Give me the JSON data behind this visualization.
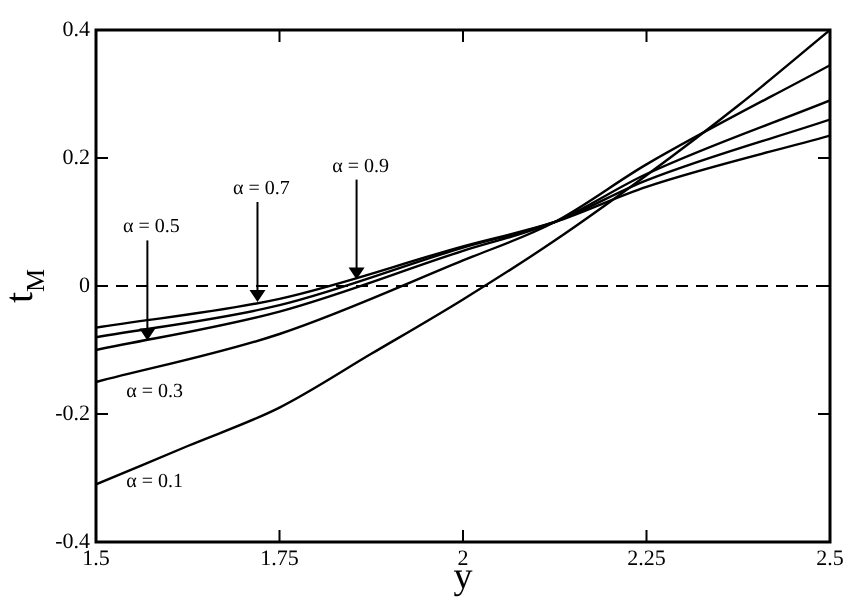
{
  "chart_data": {
    "type": "line",
    "xlabel": "y",
    "ylabel": "t$_{M}$",
    "xlim": [
      1.5,
      2.5
    ],
    "xticks": [
      1.5,
      1.75,
      2,
      2.25,
      2.5
    ],
    "ylim": [
      -0.4,
      0.4
    ],
    "yticks": [
      -0.4,
      -0.2,
      0,
      0.2,
      0.4
    ],
    "grid": false,
    "legend": false,
    "marker": "none",
    "line_style": "solid",
    "series": [
      {
        "color": "#000000",
        "x": [
          1.5,
          1.625,
          1.75,
          1.875,
          2,
          2.125,
          2.25,
          2.375,
          2.5
        ],
        "values": [
          -0.31,
          -0.25,
          -0.19,
          -0.106,
          -0.021,
          0.071,
          0.173,
          0.282,
          0.4
        ]
      },
      {
        "color": "#000000",
        "x": [
          1.5,
          1.75,
          2,
          2.125,
          2.25,
          2.5
        ],
        "values": [
          -0.15,
          -0.075,
          0.04,
          0.1,
          0.19,
          0.345
        ]
      },
      {
        "color": "#000000",
        "x": [
          1.5,
          1.75,
          2,
          2.125,
          2.25,
          2.5
        ],
        "values": [
          -0.1,
          -0.04,
          0.055,
          0.1,
          0.175,
          0.29
        ]
      },
      {
        "color": "#000000",
        "x": [
          1.5,
          1.75,
          2,
          2.125,
          2.25,
          2.5
        ],
        "values": [
          -0.08,
          -0.03,
          0.06,
          0.1,
          0.165,
          0.26
        ]
      },
      {
        "color": "#000000",
        "x": [
          1.5,
          1.75,
          2,
          2.125,
          2.25,
          2.5
        ],
        "values": [
          -0.065,
          -0.02,
          0.062,
          0.1,
          0.155,
          0.235
        ]
      }
    ],
    "ref_lines": [
      {
        "axis": "y",
        "value": 0,
        "color": "#000000",
        "line_style": "dashed"
      }
    ],
    "annotations": [
      {
        "text": "α = 0.5",
        "x": 1.57,
        "y": -0.085
      },
      {
        "text": "α = 0.7",
        "x": 1.72,
        "y": -0.025
      },
      {
        "text": "α = 0.9",
        "x": 1.855,
        "y": 0.01
      },
      {
        "text": "α = 0.3",
        "x": 1.58,
        "y": -0.13
      },
      {
        "text": "α = 0.1",
        "x": 1.58,
        "y": -0.27
      }
    ]
  }
}
